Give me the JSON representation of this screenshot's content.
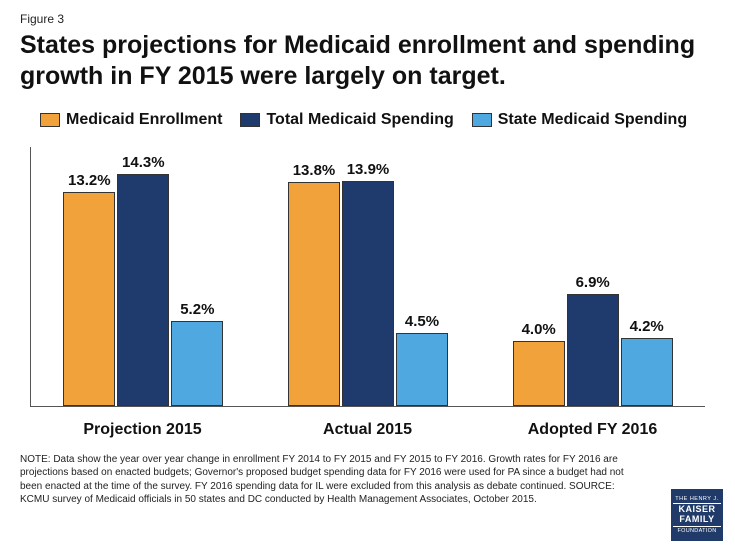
{
  "figure_label": "Figure 3",
  "title": "States projections for Medicaid enrollment and spending growth in FY 2015 were largely on target.",
  "chart": {
    "type": "bar",
    "y_max_percent": 16,
    "colors": {
      "enrollment": "#f2a23a",
      "total": "#1f3b6e",
      "state": "#4fa8e0",
      "border": "#333333",
      "axis": "#555555",
      "background": "#ffffff"
    },
    "series": [
      {
        "key": "enrollment",
        "label": "Medicaid Enrollment"
      },
      {
        "key": "total",
        "label": "Total Medicaid Spending"
      },
      {
        "key": "state",
        "label": "State Medicaid Spending"
      }
    ],
    "categories": [
      {
        "label": "Projection 2015",
        "bars": [
          {
            "series": "enrollment",
            "value": 13.2,
            "label": "13.2%"
          },
          {
            "series": "total",
            "value": 14.3,
            "label": "14.3%"
          },
          {
            "series": "state",
            "value": 5.2,
            "label": "5.2%"
          }
        ]
      },
      {
        "label": "Actual 2015",
        "bars": [
          {
            "series": "enrollment",
            "value": 13.8,
            "label": "13.8%"
          },
          {
            "series": "total",
            "value": 13.9,
            "label": "13.9%"
          },
          {
            "series": "state",
            "value": 4.5,
            "label": "4.5%"
          }
        ]
      },
      {
        "label": "Adopted FY 2016",
        "bars": [
          {
            "series": "enrollment",
            "value": 4.0,
            "label": "4.0%"
          },
          {
            "series": "total",
            "value": 6.9,
            "label": "6.9%"
          },
          {
            "series": "state",
            "value": 4.2,
            "label": "4.2%"
          }
        ]
      }
    ]
  },
  "notes": "NOTE: Data show the year over year change in enrollment FY 2014 to FY 2015 and FY 2015 to FY 2016. Growth rates for FY 2016 are projections based on enacted budgets; Governor's proposed budget spending data for FY 2016 were used for PA since a budget had not been enacted at the time of the survey. FY 2016 spending data for IL were excluded from this analysis as debate continued. SOURCE: KCMU survey of Medicaid officials in 50 states and DC conducted by Health Management Associates, October 2015.",
  "logo": {
    "top": "THE HENRY J.",
    "mid1": "KAISER",
    "mid2": "FAMILY",
    "bot": "FOUNDATION"
  }
}
